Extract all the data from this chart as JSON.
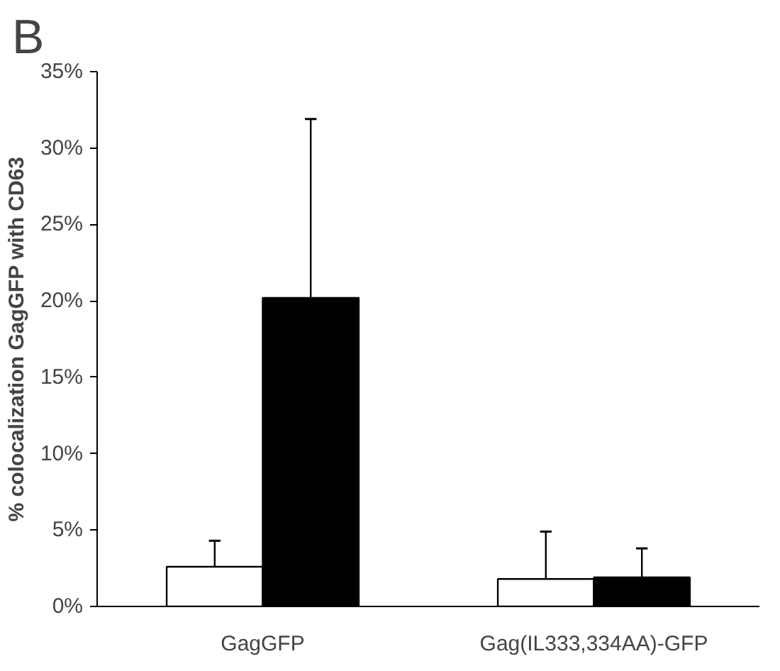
{
  "chart_data": {
    "type": "bar",
    "title": "B",
    "ylabel": "% colocalization GagGFP with CD63",
    "categories": [
      "GagGFP",
      "Gag(IL333,334AA)-GFP"
    ],
    "series": [
      {
        "color": "#ffffff",
        "values": [
          2.6,
          1.8
        ],
        "errors": [
          [
            2.6,
            4.3
          ],
          [
            1.8,
            4.9
          ]
        ]
      },
      {
        "color": "#000000",
        "values": [
          20.2,
          1.9
        ],
        "errors": [
          [
            20.2,
            31.9
          ],
          [
            1.9,
            3.8
          ]
        ]
      }
    ],
    "ylim": [
      0,
      35
    ],
    "yticks": [
      {
        "value": 0,
        "label": "0%"
      },
      {
        "value": 5,
        "label": "5%"
      },
      {
        "value": 10,
        "label": "10%"
      },
      {
        "value": 15,
        "label": "15%"
      },
      {
        "value": 20,
        "label": "20%"
      },
      {
        "value": 25,
        "label": "25%"
      },
      {
        "value": 30,
        "label": "30%"
      },
      {
        "value": 35,
        "label": "35%"
      }
    ],
    "grid": false
  }
}
